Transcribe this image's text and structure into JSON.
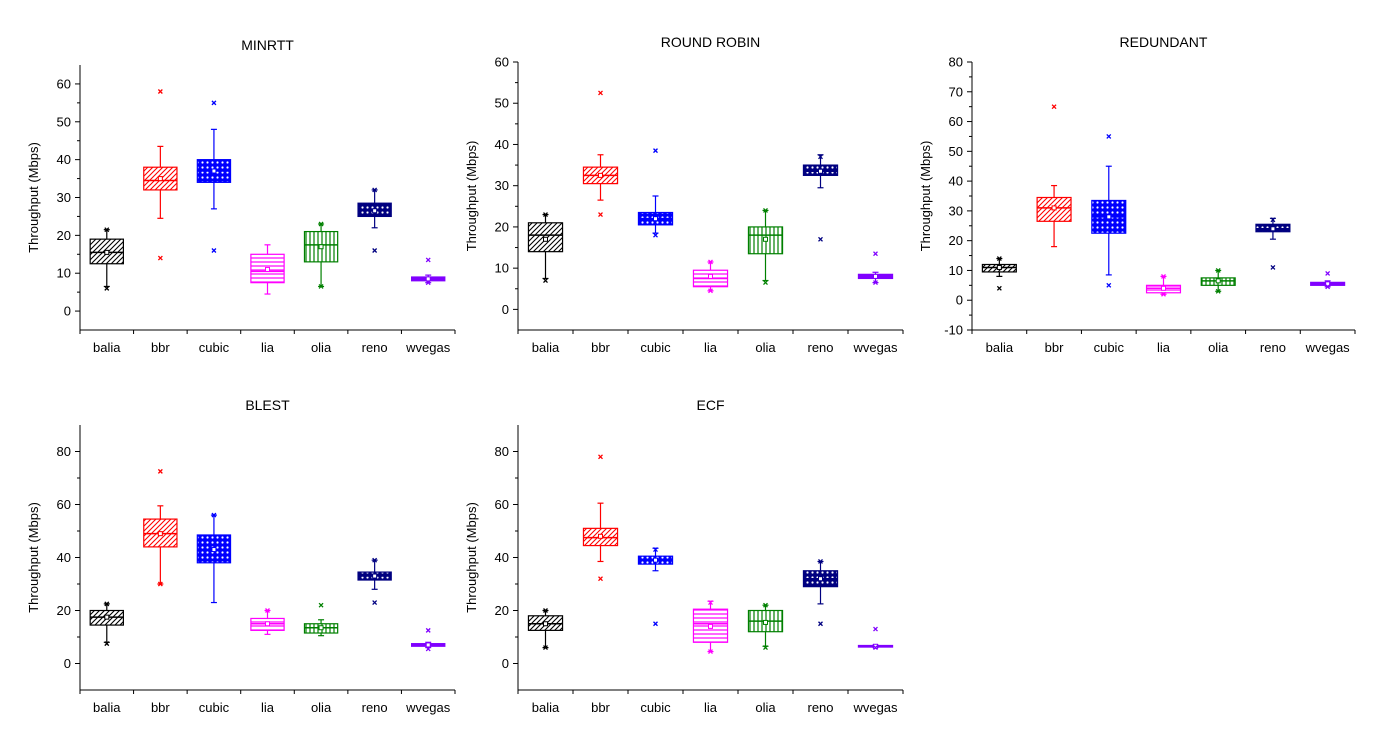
{
  "chart_data": [
    {
      "type": "box",
      "title": "MINRTT",
      "ylabel": "Throughput (Mbps)",
      "xlabel": "",
      "ylim": [
        -5,
        65
      ],
      "yticks": [
        0,
        10,
        20,
        30,
        40,
        50,
        60
      ],
      "categories": [
        "balia",
        "bbr",
        "cubic",
        "lia",
        "olia",
        "reno",
        "wvegas"
      ],
      "boxes": [
        {
          "category": "balia",
          "color": "#000000",
          "pattern": "diag",
          "whisker_low": 6.5,
          "q1": 12.5,
          "median": 15.5,
          "mean": 15.5,
          "q3": 19,
          "whisker_high": 21.5,
          "outliers": [
            6,
            21.5
          ]
        },
        {
          "category": "bbr",
          "color": "#ff0000",
          "pattern": "diag",
          "whisker_low": 24.5,
          "q1": 32,
          "median": 34.5,
          "mean": 35,
          "q3": 38,
          "whisker_high": 43.5,
          "outliers": [
            14,
            58
          ]
        },
        {
          "category": "cubic",
          "color": "#0000ff",
          "pattern": "dots",
          "whisker_low": 27,
          "q1": 34,
          "median": 37,
          "mean": 37,
          "q3": 40,
          "whisker_high": 48,
          "outliers": [
            16,
            55
          ]
        },
        {
          "category": "lia",
          "color": "#ff00ff",
          "pattern": "hlines",
          "whisker_low": 4.5,
          "q1": 7.5,
          "median": 10.5,
          "mean": 11,
          "q3": 15,
          "whisker_high": 17.5,
          "outliers": []
        },
        {
          "category": "olia",
          "color": "#008000",
          "pattern": "vlines",
          "whisker_low": 6.5,
          "q1": 13,
          "median": 17.5,
          "mean": 17,
          "q3": 21,
          "whisker_high": 23,
          "outliers": [
            6.5,
            23
          ]
        },
        {
          "category": "reno",
          "color": "#000080",
          "pattern": "dots",
          "whisker_low": 22,
          "q1": 25,
          "median": 26.5,
          "mean": 26.5,
          "q3": 28.5,
          "whisker_high": 32,
          "outliers": [
            16,
            32
          ]
        },
        {
          "category": "wvegas",
          "color": "#8000ff",
          "pattern": "solid",
          "whisker_low": 7.5,
          "q1": 8,
          "median": 8.5,
          "mean": 8.5,
          "q3": 9,
          "whisker_high": 9.5,
          "outliers": [
            7.5,
            13.5
          ]
        }
      ]
    },
    {
      "type": "box",
      "title": "ROUND ROBIN",
      "ylabel": "Throughput (Mbps)",
      "xlabel": "",
      "ylim": [
        -5,
        60
      ],
      "yticks": [
        0,
        10,
        20,
        30,
        40,
        50,
        60
      ],
      "categories": [
        "balia",
        "bbr",
        "cubic",
        "lia",
        "olia",
        "reno",
        "wvegas"
      ],
      "boxes": [
        {
          "category": "balia",
          "color": "#000000",
          "pattern": "diag",
          "whisker_low": 7.5,
          "q1": 14,
          "median": 18,
          "mean": 17,
          "q3": 21,
          "whisker_high": 23,
          "outliers": [
            7,
            23
          ]
        },
        {
          "category": "bbr",
          "color": "#ff0000",
          "pattern": "diag",
          "whisker_low": 26.5,
          "q1": 30.5,
          "median": 32.5,
          "mean": 32.5,
          "q3": 34.5,
          "whisker_high": 37.5,
          "outliers": [
            23,
            52.5
          ]
        },
        {
          "category": "cubic",
          "color": "#0000ff",
          "pattern": "dots",
          "whisker_low": 18.5,
          "q1": 20.5,
          "median": 22,
          "mean": 22,
          "q3": 23.5,
          "whisker_high": 27.5,
          "outliers": [
            18,
            38.5
          ]
        },
        {
          "category": "lia",
          "color": "#ff00ff",
          "pattern": "hlines",
          "whisker_low": 4.5,
          "q1": 5.5,
          "median": 7.5,
          "mean": 8,
          "q3": 9.5,
          "whisker_high": 11.5,
          "outliers": [
            4.5,
            11.5
          ]
        },
        {
          "category": "olia",
          "color": "#008000",
          "pattern": "vlines",
          "whisker_low": 7,
          "q1": 13.5,
          "median": 18,
          "mean": 17,
          "q3": 20,
          "whisker_high": 24,
          "outliers": [
            6.5,
            24
          ]
        },
        {
          "category": "reno",
          "color": "#000080",
          "pattern": "dots",
          "whisker_low": 29.5,
          "q1": 32.5,
          "median": 33.5,
          "mean": 33.5,
          "q3": 35,
          "whisker_high": 37.5,
          "outliers": [
            17,
            37
          ]
        },
        {
          "category": "wvegas",
          "color": "#8000ff",
          "pattern": "solid",
          "whisker_low": 6.5,
          "q1": 7.5,
          "median": 8,
          "mean": 8,
          "q3": 8.5,
          "whisker_high": 9,
          "outliers": [
            6.5,
            13.5
          ]
        }
      ]
    },
    {
      "type": "box",
      "title": "REDUNDANT",
      "ylabel": "Throughput (Mbps)",
      "xlabel": "",
      "ylim": [
        -10,
        80
      ],
      "yticks": [
        -10,
        0,
        10,
        20,
        30,
        40,
        50,
        60,
        70,
        80
      ],
      "categories": [
        "balia",
        "bbr",
        "cubic",
        "lia",
        "olia",
        "reno",
        "wvegas"
      ],
      "boxes": [
        {
          "category": "balia",
          "color": "#000000",
          "pattern": "diag",
          "whisker_low": 8,
          "q1": 9.5,
          "median": 11,
          "mean": 11,
          "q3": 12,
          "whisker_high": 14,
          "outliers": [
            4,
            14
          ]
        },
        {
          "category": "bbr",
          "color": "#ff0000",
          "pattern": "diag",
          "whisker_low": 18,
          "q1": 26.5,
          "median": 31,
          "mean": 31,
          "q3": 34.5,
          "whisker_high": 38.5,
          "outliers": [
            65
          ]
        },
        {
          "category": "cubic",
          "color": "#0000ff",
          "pattern": "dots",
          "whisker_low": 8.5,
          "q1": 22.5,
          "median": 28,
          "mean": 28,
          "q3": 33.5,
          "whisker_high": 45,
          "outliers": [
            5,
            55
          ]
        },
        {
          "category": "lia",
          "color": "#ff00ff",
          "pattern": "hlines",
          "whisker_low": 2,
          "q1": 2.5,
          "median": 4,
          "mean": 4,
          "q3": 5,
          "whisker_high": 8,
          "outliers": [
            2,
            8
          ]
        },
        {
          "category": "olia",
          "color": "#008000",
          "pattern": "vlines",
          "whisker_low": 3,
          "q1": 5,
          "median": 6.5,
          "mean": 6.5,
          "q3": 7.5,
          "whisker_high": 10,
          "outliers": [
            3,
            10
          ]
        },
        {
          "category": "reno",
          "color": "#000080",
          "pattern": "dots",
          "whisker_low": 20.5,
          "q1": 23,
          "median": 24,
          "mean": 24,
          "q3": 25.5,
          "whisker_high": 27.5,
          "outliers": [
            11,
            27
          ]
        },
        {
          "category": "wvegas",
          "color": "#8000ff",
          "pattern": "solid",
          "whisker_low": 4.5,
          "q1": 5,
          "median": 5.5,
          "mean": 5.5,
          "q3": 6,
          "whisker_high": 6.5,
          "outliers": [
            4.5,
            9
          ]
        }
      ]
    },
    {
      "type": "box",
      "title": "BLEST",
      "ylabel": "Throughput (Mbps)",
      "xlabel": "",
      "ylim": [
        -10,
        90
      ],
      "yticks": [
        0,
        20,
        40,
        60,
        80
      ],
      "categories": [
        "balia",
        "bbr",
        "cubic",
        "lia",
        "olia",
        "reno",
        "wvegas"
      ],
      "boxes": [
        {
          "category": "balia",
          "color": "#000000",
          "pattern": "diag",
          "whisker_low": 8,
          "q1": 14.5,
          "median": 17.5,
          "mean": 17.5,
          "q3": 20,
          "whisker_high": 22.5,
          "outliers": [
            7.5,
            22.5
          ]
        },
        {
          "category": "bbr",
          "color": "#ff0000",
          "pattern": "diag",
          "whisker_low": 30,
          "q1": 44,
          "median": 49,
          "mean": 49,
          "q3": 54.5,
          "whisker_high": 59.5,
          "outliers": [
            30,
            72.5
          ]
        },
        {
          "category": "cubic",
          "color": "#0000ff",
          "pattern": "dots",
          "whisker_low": 23,
          "q1": 38,
          "median": 43,
          "mean": 43,
          "q3": 48.5,
          "whisker_high": 56,
          "outliers": [
            56
          ]
        },
        {
          "category": "lia",
          "color": "#ff00ff",
          "pattern": "hlines",
          "whisker_low": 11,
          "q1": 12.5,
          "median": 15,
          "mean": 15,
          "q3": 17,
          "whisker_high": 20,
          "outliers": [
            20
          ]
        },
        {
          "category": "olia",
          "color": "#008000",
          "pattern": "vlines",
          "whisker_low": 10.5,
          "q1": 11.5,
          "median": 13.5,
          "mean": 13.5,
          "q3": 15,
          "whisker_high": 16.5,
          "outliers": [
            22
          ]
        },
        {
          "category": "reno",
          "color": "#000080",
          "pattern": "dots",
          "whisker_low": 28,
          "q1": 31.5,
          "median": 33,
          "mean": 33,
          "q3": 34.5,
          "whisker_high": 39,
          "outliers": [
            23,
            39
          ]
        },
        {
          "category": "wvegas",
          "color": "#8000ff",
          "pattern": "solid",
          "whisker_low": 6,
          "q1": 6.5,
          "median": 7,
          "mean": 7,
          "q3": 7.5,
          "whisker_high": 8,
          "outliers": [
            5.5,
            12.5
          ]
        }
      ]
    },
    {
      "type": "box",
      "title": "ECF",
      "ylabel": "Throughput (Mbps)",
      "xlabel": "",
      "ylim": [
        -10,
        90
      ],
      "yticks": [
        0,
        20,
        40,
        60,
        80
      ],
      "categories": [
        "balia",
        "bbr",
        "cubic",
        "lia",
        "olia",
        "reno",
        "wvegas"
      ],
      "boxes": [
        {
          "category": "balia",
          "color": "#000000",
          "pattern": "diag",
          "whisker_low": 6,
          "q1": 12.5,
          "median": 15,
          "mean": 15,
          "q3": 18,
          "whisker_high": 20,
          "outliers": [
            6,
            20
          ]
        },
        {
          "category": "bbr",
          "color": "#ff0000",
          "pattern": "diag",
          "whisker_low": 38.5,
          "q1": 44.5,
          "median": 47.5,
          "mean": 48,
          "q3": 51,
          "whisker_high": 60.5,
          "outliers": [
            32,
            78
          ]
        },
        {
          "category": "cubic",
          "color": "#0000ff",
          "pattern": "dots",
          "whisker_low": 35,
          "q1": 37.5,
          "median": 39,
          "mean": 39,
          "q3": 40.5,
          "whisker_high": 43.5,
          "outliers": [
            15,
            43
          ]
        },
        {
          "category": "lia",
          "color": "#ff00ff",
          "pattern": "hlines",
          "whisker_low": 4.5,
          "q1": 8,
          "median": 15,
          "mean": 14,
          "q3": 20.5,
          "whisker_high": 23.5,
          "outliers": [
            4.5,
            23
          ]
        },
        {
          "category": "olia",
          "color": "#008000",
          "pattern": "vlines",
          "whisker_low": 6.5,
          "q1": 12,
          "median": 16,
          "mean": 15.5,
          "q3": 20,
          "whisker_high": 22,
          "outliers": [
            6,
            22
          ]
        },
        {
          "category": "reno",
          "color": "#000080",
          "pattern": "dots",
          "whisker_low": 22.5,
          "q1": 29,
          "median": 32,
          "mean": 32,
          "q3": 35,
          "whisker_high": 38.5,
          "outliers": [
            15,
            38.5
          ]
        },
        {
          "category": "wvegas",
          "color": "#8000ff",
          "pattern": "solid",
          "whisker_low": 6,
          "q1": 6.2,
          "median": 6.5,
          "mean": 6.5,
          "q3": 6.8,
          "whisker_high": 7,
          "outliers": [
            6,
            13
          ]
        }
      ]
    }
  ]
}
